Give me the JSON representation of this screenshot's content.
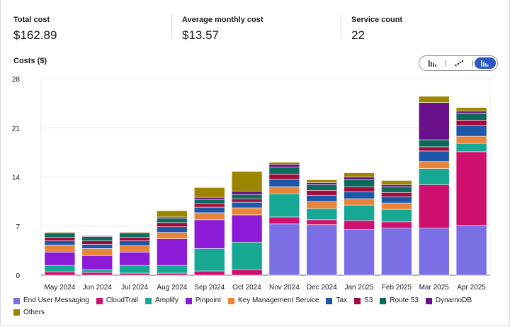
{
  "summary": {
    "total_cost_label": "Total cost",
    "total_cost_value": "$162.89",
    "avg_cost_label": "Average monthly cost",
    "avg_cost_value": "$13.57",
    "service_count_label": "Service count",
    "service_count_value": "22"
  },
  "chart_header": {
    "label": "Costs ($)"
  },
  "chart_type_toggle": {
    "options": [
      "bar-chart-icon",
      "line-chart-icon",
      "stacked-bar-chart-icon"
    ],
    "selected": "stacked-bar-chart-icon"
  },
  "chart_data": {
    "type": "bar",
    "stacked": true,
    "title": "",
    "ylabel": "Costs ($)",
    "ylim": [
      0,
      28
    ],
    "yticks": [
      "0",
      "7",
      "14",
      "21",
      "28"
    ],
    "categories": [
      "May 2024",
      "Jun 2024",
      "Jul 2024",
      "Aug 2024",
      "Sep 2024",
      "Oct 2024",
      "Nov 2024",
      "Dec 2024",
      "Jan 2025",
      "Feb 2025",
      "Mar 2025",
      "Apr 2025"
    ],
    "series": [
      {
        "name": "End User Messaging",
        "color": "#7b6fe6",
        "values": [
          0,
          0,
          0,
          0,
          0,
          0,
          7.3,
          7.2,
          6.5,
          6.7,
          6.7,
          7.1
        ]
      },
      {
        "name": "CloudTrail",
        "color": "#d0106e",
        "values": [
          0.5,
          0.4,
          0.3,
          0.3,
          0.6,
          0.8,
          1.0,
          0.7,
          1.3,
          0.9,
          6.2,
          10.5
        ]
      },
      {
        "name": "Amplify",
        "color": "#16a892",
        "values": [
          0.9,
          0.4,
          1.1,
          1.1,
          3.2,
          3.9,
          3.3,
          1.6,
          2.2,
          1.8,
          2.3,
          1.2
        ]
      },
      {
        "name": "Pinpoint",
        "color": "#8c1ad6",
        "values": [
          1.9,
          2.0,
          1.9,
          3.8,
          4.1,
          3.9,
          0,
          0,
          0,
          0,
          0,
          0
        ]
      },
      {
        "name": "Key Management Service",
        "color": "#e8853a",
        "values": [
          1.0,
          1.0,
          0.9,
          0.9,
          1.0,
          1.0,
          1.0,
          1.0,
          0.9,
          0.9,
          1.0,
          1.0
        ]
      },
      {
        "name": "Tax",
        "color": "#1d57a9",
        "values": [
          0.6,
          0.6,
          0.7,
          0.8,
          0.8,
          0.8,
          1.1,
          0.9,
          1.0,
          0.9,
          1.5,
          1.6
        ]
      },
      {
        "name": "S3",
        "color": "#a10a3a",
        "values": [
          0.5,
          0.5,
          0.5,
          0.6,
          0.5,
          0.5,
          0.7,
          0.7,
          0.7,
          0.6,
          0.6,
          0.7
        ]
      },
      {
        "name": "Route 53",
        "color": "#0b6b5b",
        "values": [
          0.6,
          0.6,
          0.6,
          0.6,
          0.6,
          0.6,
          1.0,
          0.8,
          1.0,
          0.8,
          1.0,
          1.0
        ]
      },
      {
        "name": "DynamoDB",
        "color": "#6a0f8a",
        "values": [
          0.1,
          0.1,
          0.1,
          0.2,
          0.3,
          0.5,
          0.4,
          0.3,
          0.4,
          0.3,
          5.3,
          0.3
        ]
      },
      {
        "name": "Others",
        "color": "#9c8500",
        "values": [
          0.1,
          0.1,
          0.1,
          0.9,
          1.4,
          2.8,
          0.3,
          0.4,
          0.6,
          0.6,
          0.9,
          0.5
        ]
      }
    ]
  }
}
